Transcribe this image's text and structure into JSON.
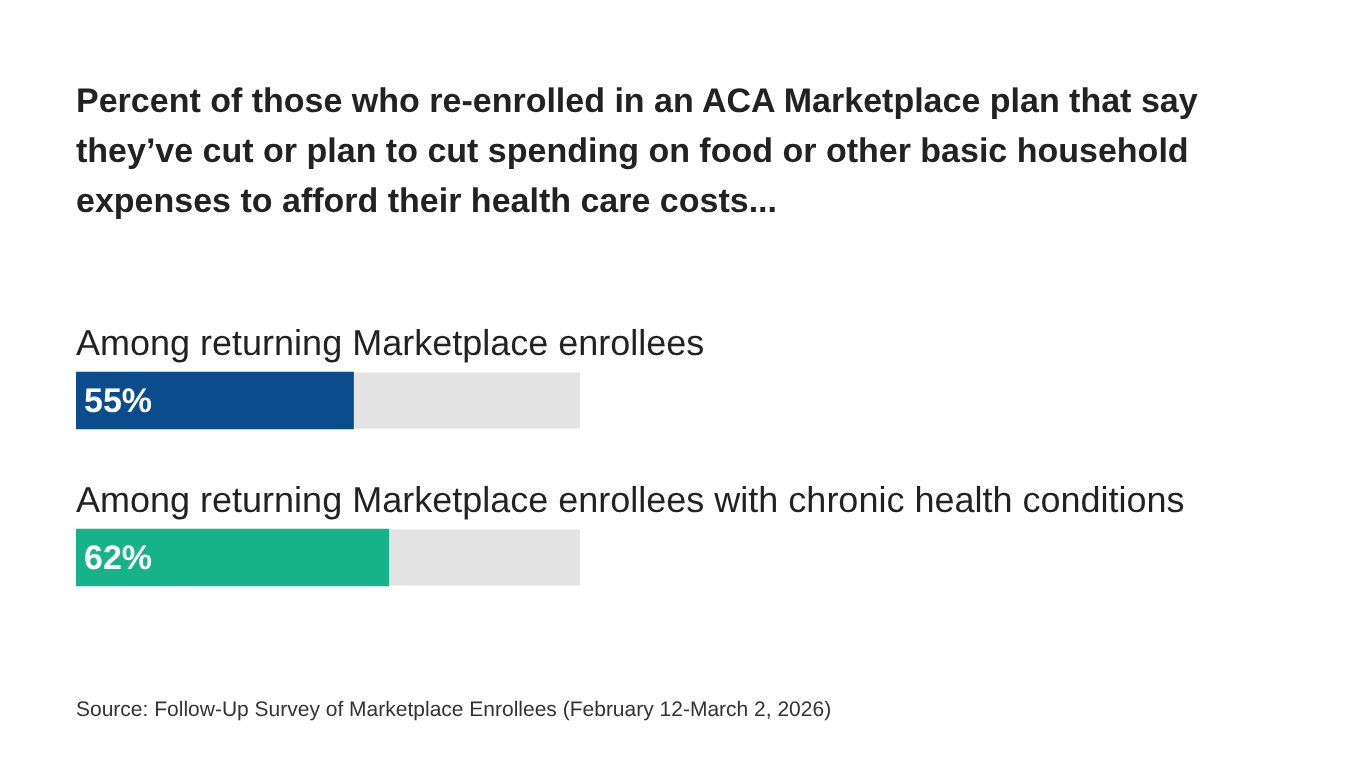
{
  "chart_data": {
    "type": "bar",
    "orientation": "horizontal",
    "title": "Percent of those who re-enrolled in an ACA Marketplace plan that say they’ve cut or plan to cut spending on food or other basic household expenses to afford their health care costs...",
    "categories": [
      "Among returning Marketplace enrollees",
      "Among returning Marketplace enrollees with chronic health conditions"
    ],
    "values": [
      55,
      62
    ],
    "colors": [
      "#0a4c8c",
      "#16b38a"
    ],
    "value_labels": [
      "55%",
      "62%"
    ],
    "xlim": [
      0,
      100
    ],
    "tick_labels": false,
    "grid": false,
    "legend": false,
    "annotations": [
      "Source: Follow-Up Survey of Marketplace Enrollees (February 12-March 2, 2026)"
    ]
  }
}
